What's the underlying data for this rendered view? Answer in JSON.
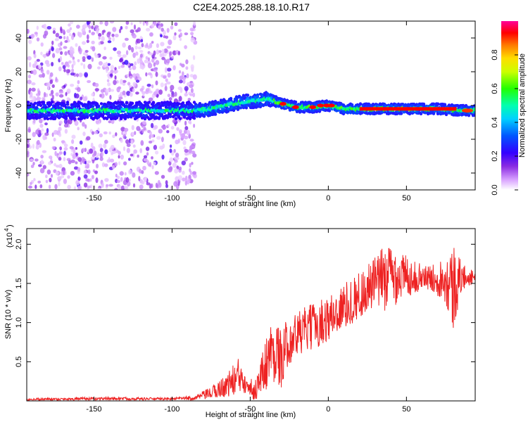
{
  "title": "C2E4.2025.288.18.10.R17",
  "colors": {
    "snr_line": "#ee2222",
    "frame": "#000000"
  },
  "chart_data": [
    {
      "type": "heatmap",
      "title": "C2E4.2025.288.18.10.R17",
      "xlabel": "Height of straight line (km)",
      "ylabel": "Frequency (Hz)",
      "xlim": [
        -193,
        94
      ],
      "ylim": [
        -50,
        50
      ],
      "xticks": [
        -150,
        -100,
        -50,
        0,
        50
      ],
      "yticks": [
        -40,
        -20,
        0,
        20,
        40
      ],
      "noise_region_x": [
        -193,
        -85
      ],
      "ridge": {
        "x": [
          -193,
          -150,
          -100,
          -85,
          -75,
          -65,
          -55,
          -45,
          -38,
          -30,
          -20,
          -10,
          0,
          10,
          30,
          50,
          70,
          85,
          94
        ],
        "freq": [
          -3,
          -3,
          -3,
          -3,
          -2,
          0,
          2,
          3,
          4,
          1,
          -1,
          -1,
          0,
          -2,
          -2,
          -2,
          -2,
          -3,
          -3
        ]
      },
      "colorbar": {
        "label": "Normalized spectral amplitude",
        "range": [
          0,
          1
        ],
        "ticks": [
          0.0,
          0.2,
          0.4,
          0.6,
          0.8
        ]
      }
    },
    {
      "type": "line",
      "xlabel": "Height of straight line (km)",
      "ylabel": "SNR (10 * v/v)",
      "scale_label": "(x10",
      "scale_exp": "4",
      "xlim": [
        -193,
        94
      ],
      "ylim": [
        0,
        22000
      ],
      "xticks": [
        -150,
        -100,
        -50,
        0,
        50
      ],
      "yticks": [
        5000,
        10000,
        15000,
        20000
      ],
      "ytick_labels": [
        "0.5",
        "1.0",
        "1.5",
        "2.0"
      ],
      "series": [
        {
          "name": "SNR",
          "envelope_x": [
            -193,
            -140,
            -100,
            -85,
            -75,
            -65,
            -58,
            -52,
            -48,
            -42,
            -38,
            -33,
            -29,
            -28,
            -20,
            -10,
            0,
            10,
            20,
            30,
            38,
            45,
            55,
            65,
            75,
            80,
            85,
            94
          ],
          "envelope_mid": [
            200,
            300,
            250,
            400,
            1000,
            2000,
            3000,
            3000,
            1000,
            3500,
            6000,
            6500,
            4500,
            7000,
            8500,
            9500,
            10500,
            12000,
            13500,
            15000,
            16000,
            16000,
            15800,
            15700,
            15600,
            14500,
            15800,
            15800
          ],
          "envelope_amp": [
            150,
            200,
            150,
            300,
            800,
            1500,
            2500,
            2000,
            1000,
            3000,
            4000,
            4000,
            3500,
            3000,
            3000,
            3000,
            3000,
            3000,
            3000,
            3500,
            4500,
            3500,
            2000,
            1500,
            3000,
            6000,
            2000,
            600
          ]
        }
      ]
    }
  ]
}
